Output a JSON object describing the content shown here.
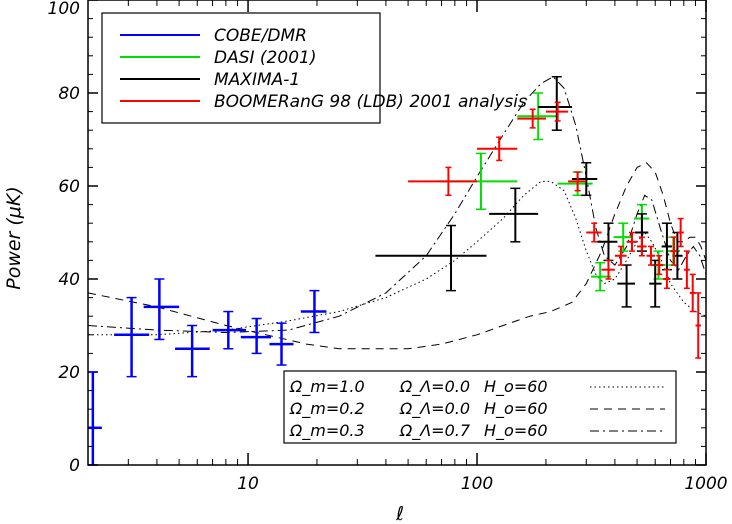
{
  "chart_data": {
    "type": "scatter",
    "title": "",
    "xlabel": "ℓ",
    "ylabel": "Power (μK)",
    "xscale": "log",
    "xlim": [
      2,
      1000
    ],
    "ylim": [
      0,
      100
    ],
    "x_ticks": [
      10,
      100,
      1000
    ],
    "y_ticks": [
      0,
      20,
      40,
      60,
      80,
      100
    ],
    "x_tick_labels": [
      "10",
      "100",
      "1000"
    ],
    "y_tick_labels": [
      "0",
      "20",
      "40",
      "60",
      "80",
      "100"
    ],
    "legend": {
      "placement": "top-left",
      "entries": [
        {
          "label": "COBE/DMR",
          "color": "#0000ff"
        },
        {
          "label": "DASI (2001)",
          "color": "#00dd00"
        },
        {
          "label": "MAXIMA-1",
          "color": "#000000"
        },
        {
          "label": "BOOMERanG 98 (LDB) 2001 analysis",
          "color": "#ff0000"
        }
      ]
    },
    "series": [
      {
        "name": "COBE/DMR",
        "color": "#0000ff",
        "points": [
          {
            "x": 2.1,
            "xlo": 2.0,
            "xhi": 2.3,
            "y": 8,
            "ylo": 0,
            "yhi": 20
          },
          {
            "x": 3.1,
            "xlo": 2.6,
            "xhi": 3.7,
            "y": 28,
            "ylo": 19,
            "yhi": 36
          },
          {
            "x": 4.1,
            "xlo": 3.5,
            "xhi": 5.0,
            "y": 34,
            "ylo": 27,
            "yhi": 40
          },
          {
            "x": 5.7,
            "xlo": 4.8,
            "xhi": 6.8,
            "y": 25,
            "ylo": 19,
            "yhi": 30
          },
          {
            "x": 8.2,
            "xlo": 7.0,
            "xhi": 9.8,
            "y": 29,
            "ylo": 25,
            "yhi": 33
          },
          {
            "x": 10.9,
            "xlo": 9.3,
            "xhi": 12.6,
            "y": 27.5,
            "ylo": 24,
            "yhi": 31.5
          },
          {
            "x": 14.0,
            "xlo": 12.4,
            "xhi": 15.8,
            "y": 26,
            "ylo": 21.5,
            "yhi": 30.5
          },
          {
            "x": 19.5,
            "xlo": 17.0,
            "xhi": 22.0,
            "y": 33,
            "ylo": 28.5,
            "yhi": 37.5
          }
        ]
      },
      {
        "name": "DASI (2001)",
        "color": "#00dd00",
        "points": [
          {
            "x": 104,
            "xlo": 68,
            "xhi": 150,
            "y": 61,
            "ylo": 55,
            "yhi": 67
          },
          {
            "x": 185,
            "xlo": 150,
            "xhi": 225,
            "y": 75,
            "ylo": 70,
            "yhi": 80
          },
          {
            "x": 275,
            "xlo": 225,
            "xhi": 320,
            "y": 60.5,
            "ylo": 58,
            "yhi": 63
          },
          {
            "x": 345,
            "xlo": 315,
            "xhi": 385,
            "y": 40.5,
            "ylo": 37.5,
            "yhi": 43.5
          },
          {
            "x": 435,
            "xlo": 395,
            "xhi": 475,
            "y": 49,
            "ylo": 46,
            "yhi": 52
          },
          {
            "x": 525,
            "xlo": 485,
            "xhi": 565,
            "y": 53,
            "ylo": 50,
            "yhi": 56
          },
          {
            "x": 620,
            "xlo": 575,
            "xhi": 665,
            "y": 43,
            "ylo": 40,
            "yhi": 46
          },
          {
            "x": 720,
            "xlo": 675,
            "xhi": 770,
            "y": 46,
            "ylo": 43,
            "yhi": 49
          }
        ]
      },
      {
        "name": "MAXIMA-1",
        "color": "#000000",
        "points": [
          {
            "x": 77,
            "xlo": 36,
            "xhi": 110,
            "y": 45,
            "ylo": 37.5,
            "yhi": 51.5
          },
          {
            "x": 147,
            "xlo": 113,
            "xhi": 185,
            "y": 54,
            "ylo": 48,
            "yhi": 59.5
          },
          {
            "x": 223,
            "xlo": 185,
            "xhi": 260,
            "y": 77,
            "ylo": 72,
            "yhi": 83.5
          },
          {
            "x": 300,
            "xlo": 260,
            "xhi": 335,
            "y": 61.5,
            "ylo": 58,
            "yhi": 65
          },
          {
            "x": 375,
            "xlo": 335,
            "xhi": 410,
            "y": 48,
            "ylo": 44,
            "yhi": 52
          },
          {
            "x": 450,
            "xlo": 410,
            "xhi": 490,
            "y": 39,
            "ylo": 34,
            "yhi": 43
          },
          {
            "x": 525,
            "xlo": 490,
            "xhi": 560,
            "y": 50,
            "ylo": 46,
            "yhi": 54
          },
          {
            "x": 600,
            "xlo": 565,
            "xhi": 640,
            "y": 39,
            "ylo": 34,
            "yhi": 44
          },
          {
            "x": 675,
            "xlo": 640,
            "xhi": 710,
            "y": 47,
            "ylo": 42,
            "yhi": 52
          },
          {
            "x": 750,
            "xlo": 715,
            "xhi": 790,
            "y": 45,
            "ylo": 40,
            "yhi": 50
          }
        ]
      },
      {
        "name": "BOOMERanG 98 (LDB) 2001 analysis",
        "color": "#ff0000",
        "points": [
          {
            "x": 75,
            "xlo": 50,
            "xhi": 100,
            "y": 61,
            "ylo": 58,
            "yhi": 64
          },
          {
            "x": 125,
            "xlo": 100,
            "xhi": 150,
            "y": 68,
            "ylo": 65.5,
            "yhi": 70.5
          },
          {
            "x": 175,
            "xlo": 150,
            "xhi": 200,
            "y": 74.5,
            "ylo": 72.5,
            "yhi": 76.5
          },
          {
            "x": 225,
            "xlo": 200,
            "xhi": 250,
            "y": 76,
            "ylo": 74,
            "yhi": 78
          },
          {
            "x": 275,
            "xlo": 250,
            "xhi": 300,
            "y": 61,
            "ylo": 59,
            "yhi": 63
          },
          {
            "x": 325,
            "xlo": 300,
            "xhi": 350,
            "y": 50,
            "ylo": 48,
            "yhi": 52
          },
          {
            "x": 375,
            "xlo": 350,
            "xhi": 400,
            "y": 42,
            "ylo": 40,
            "yhi": 44
          },
          {
            "x": 425,
            "xlo": 400,
            "xhi": 450,
            "y": 45,
            "ylo": 43,
            "yhi": 47
          },
          {
            "x": 475,
            "xlo": 450,
            "xhi": 500,
            "y": 48,
            "ylo": 46,
            "yhi": 50
          },
          {
            "x": 525,
            "xlo": 500,
            "xhi": 550,
            "y": 47,
            "ylo": 45,
            "yhi": 49
          },
          {
            "x": 575,
            "xlo": 550,
            "xhi": 600,
            "y": 45,
            "ylo": 43,
            "yhi": 47
          },
          {
            "x": 625,
            "xlo": 600,
            "xhi": 650,
            "y": 43,
            "ylo": 41,
            "yhi": 45
          },
          {
            "x": 675,
            "xlo": 650,
            "xhi": 700,
            "y": 40,
            "ylo": 38,
            "yhi": 42
          },
          {
            "x": 725,
            "xlo": 700,
            "xhi": 750,
            "y": 46,
            "ylo": 43,
            "yhi": 49
          },
          {
            "x": 775,
            "xlo": 750,
            "xhi": 800,
            "y": 50,
            "ylo": 47,
            "yhi": 53
          },
          {
            "x": 825,
            "xlo": 800,
            "xhi": 850,
            "y": 42,
            "ylo": 38,
            "yhi": 46
          },
          {
            "x": 875,
            "xlo": 850,
            "xhi": 900,
            "y": 37,
            "ylo": 33,
            "yhi": 41
          },
          {
            "x": 925,
            "xlo": 900,
            "xhi": 950,
            "y": 30,
            "ylo": 23,
            "yhi": 37
          }
        ]
      }
    ],
    "models": {
      "placement": "bottom-right",
      "entries": [
        {
          "omega_m": "Ω_m=1.0",
          "omega_l": "Ω_Λ=0.0",
          "h0": "H_o=60",
          "style": "dotted",
          "curve": [
            [
              2,
              28
            ],
            [
              4,
              28
            ],
            [
              8,
              29
            ],
            [
              15,
              31
            ],
            [
              25,
              33
            ],
            [
              40,
              36
            ],
            [
              60,
              40
            ],
            [
              80,
              44
            ],
            [
              100,
              48
            ],
            [
              130,
              53
            ],
            [
              160,
              58
            ],
            [
              190,
              61
            ],
            [
              210,
              61
            ],
            [
              240,
              59
            ],
            [
              270,
              53
            ],
            [
              300,
              46
            ],
            [
              330,
              41
            ],
            [
              360,
              39
            ],
            [
              400,
              40
            ],
            [
              450,
              44
            ],
            [
              500,
              48
            ],
            [
              540,
              50
            ],
            [
              580,
              48
            ],
            [
              640,
              44
            ],
            [
              700,
              39
            ],
            [
              800,
              35
            ],
            [
              900,
              33
            ],
            [
              1000,
              32
            ]
          ]
        },
        {
          "omega_m": "Ω_m=0.2",
          "omega_l": "Ω_Λ=0.0",
          "h0": "H_o=60",
          "style": "dashed",
          "curve": [
            [
              2,
              37
            ],
            [
              4,
              34
            ],
            [
              8,
              30
            ],
            [
              12,
              28
            ],
            [
              18,
              26
            ],
            [
              25,
              25
            ],
            [
              35,
              25
            ],
            [
              50,
              25
            ],
            [
              70,
              26
            ],
            [
              100,
              28
            ],
            [
              130,
              30
            ],
            [
              170,
              32
            ],
            [
              210,
              33
            ],
            [
              260,
              35
            ],
            [
              300,
              39
            ],
            [
              350,
              46
            ],
            [
              400,
              54
            ],
            [
              450,
              60
            ],
            [
              500,
              64
            ],
            [
              550,
              65
            ],
            [
              600,
              63
            ],
            [
              650,
              58
            ],
            [
              700,
              52
            ],
            [
              750,
              48
            ],
            [
              800,
              48
            ],
            [
              850,
              49
            ],
            [
              900,
              49
            ],
            [
              950,
              47
            ],
            [
              1000,
              44
            ]
          ]
        },
        {
          "omega_m": "Ω_m=0.3",
          "omega_l": "Ω_Λ=0.7",
          "h0": "H_o=60",
          "style": "dashdot",
          "curve": [
            [
              2,
              30
            ],
            [
              4,
              29
            ],
            [
              8,
              28.5
            ],
            [
              15,
              29
            ],
            [
              25,
              32
            ],
            [
              40,
              37
            ],
            [
              60,
              45
            ],
            [
              80,
              54
            ],
            [
              100,
              62
            ],
            [
              130,
              71
            ],
            [
              160,
              78
            ],
            [
              190,
              82
            ],
            [
              215,
              83.5
            ],
            [
              240,
              81
            ],
            [
              270,
              73
            ],
            [
              300,
              62
            ],
            [
              330,
              51
            ],
            [
              360,
              45
            ],
            [
              400,
              43
            ],
            [
              450,
              47
            ],
            [
              500,
              54
            ],
            [
              540,
              58
            ],
            [
              580,
              57
            ],
            [
              640,
              50
            ],
            [
              700,
              44
            ],
            [
              760,
              42
            ],
            [
              820,
              45
            ],
            [
              880,
              47
            ],
            [
              940,
              45
            ],
            [
              1000,
              41
            ]
          ]
        }
      ]
    }
  }
}
